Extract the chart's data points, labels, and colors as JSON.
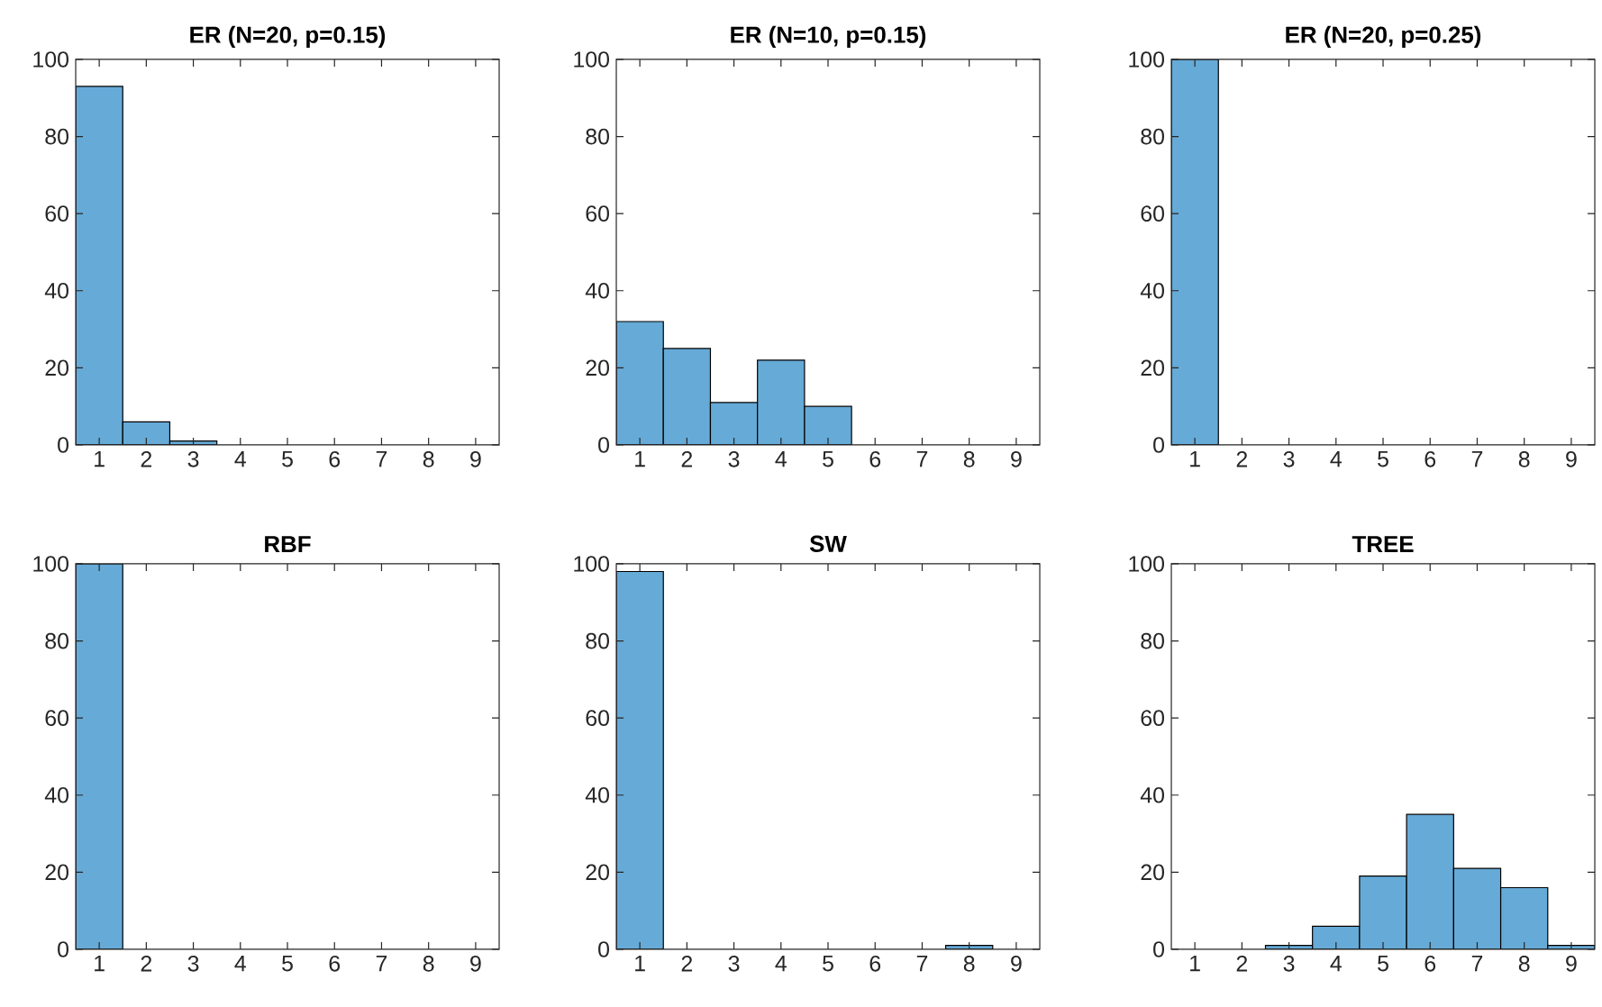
{
  "chart_data": [
    {
      "type": "histogram",
      "title": "ER (N=20, p=0.15)",
      "bins": [
        0.5,
        1.5,
        2.5,
        3.5,
        4.5,
        5.5,
        6.5,
        7.5,
        8.5,
        9.5
      ],
      "values": [
        93,
        6,
        1,
        0,
        0,
        0,
        0,
        0,
        0
      ],
      "color": "#66aad7",
      "xlim": [
        0.5,
        9.5
      ],
      "ylim": [
        0,
        100
      ],
      "xticks": [
        1,
        2,
        3,
        4,
        5,
        6,
        7,
        8,
        9
      ],
      "yticks": [
        0,
        20,
        40,
        60,
        80,
        100
      ]
    },
    {
      "type": "histogram",
      "title": "ER (N=10, p=0.15)",
      "bins": [
        0.5,
        1.5,
        2.5,
        3.5,
        4.5,
        5.5,
        6.5,
        7.5,
        8.5,
        9.5
      ],
      "values": [
        32,
        25,
        11,
        22,
        10,
        0,
        0,
        0,
        0
      ],
      "color": "#66aad7",
      "xlim": [
        0.5,
        9.5
      ],
      "ylim": [
        0,
        100
      ],
      "xticks": [
        1,
        2,
        3,
        4,
        5,
        6,
        7,
        8,
        9
      ],
      "yticks": [
        0,
        20,
        40,
        60,
        80,
        100
      ]
    },
    {
      "type": "histogram",
      "title": "ER (N=20, p=0.25)",
      "bins": [
        0.5,
        1.5,
        2.5,
        3.5,
        4.5,
        5.5,
        6.5,
        7.5,
        8.5,
        9.5
      ],
      "values": [
        100,
        0,
        0,
        0,
        0,
        0,
        0,
        0,
        0
      ],
      "color": "#66aad7",
      "xlim": [
        0.5,
        9.5
      ],
      "ylim": [
        0,
        100
      ],
      "xticks": [
        1,
        2,
        3,
        4,
        5,
        6,
        7,
        8,
        9
      ],
      "yticks": [
        0,
        20,
        40,
        60,
        80,
        100
      ]
    },
    {
      "type": "histogram",
      "title": "RBF",
      "bins": [
        0.5,
        1.5,
        2.5,
        3.5,
        4.5,
        5.5,
        6.5,
        7.5,
        8.5,
        9.5
      ],
      "values": [
        100,
        0,
        0,
        0,
        0,
        0,
        0,
        0,
        0
      ],
      "color": "#66aad7",
      "xlim": [
        0.5,
        9.5
      ],
      "ylim": [
        0,
        100
      ],
      "xticks": [
        1,
        2,
        3,
        4,
        5,
        6,
        7,
        8,
        9
      ],
      "yticks": [
        0,
        20,
        40,
        60,
        80,
        100
      ]
    },
    {
      "type": "histogram",
      "title": "SW",
      "bins": [
        0.5,
        1.5,
        2.5,
        3.5,
        4.5,
        5.5,
        6.5,
        7.5,
        8.5,
        9.5
      ],
      "values": [
        98,
        0,
        0,
        0,
        0,
        0,
        0,
        1,
        0
      ],
      "color": "#66aad7",
      "xlim": [
        0.5,
        9.5
      ],
      "ylim": [
        0,
        100
      ],
      "xticks": [
        1,
        2,
        3,
        4,
        5,
        6,
        7,
        8,
        9
      ],
      "yticks": [
        0,
        20,
        40,
        60,
        80,
        100
      ]
    },
    {
      "type": "histogram",
      "title": "TREE",
      "bins": [
        0.5,
        1.5,
        2.5,
        3.5,
        4.5,
        5.5,
        6.5,
        7.5,
        8.5,
        9.5
      ],
      "values": [
        0,
        0,
        1,
        6,
        19,
        35,
        21,
        16,
        1
      ],
      "color": "#66aad7",
      "xlim": [
        0.5,
        9.5
      ],
      "ylim": [
        0,
        100
      ],
      "xticks": [
        1,
        2,
        3,
        4,
        5,
        6,
        7,
        8,
        9
      ],
      "yticks": [
        0,
        20,
        40,
        60,
        80,
        100
      ]
    }
  ]
}
